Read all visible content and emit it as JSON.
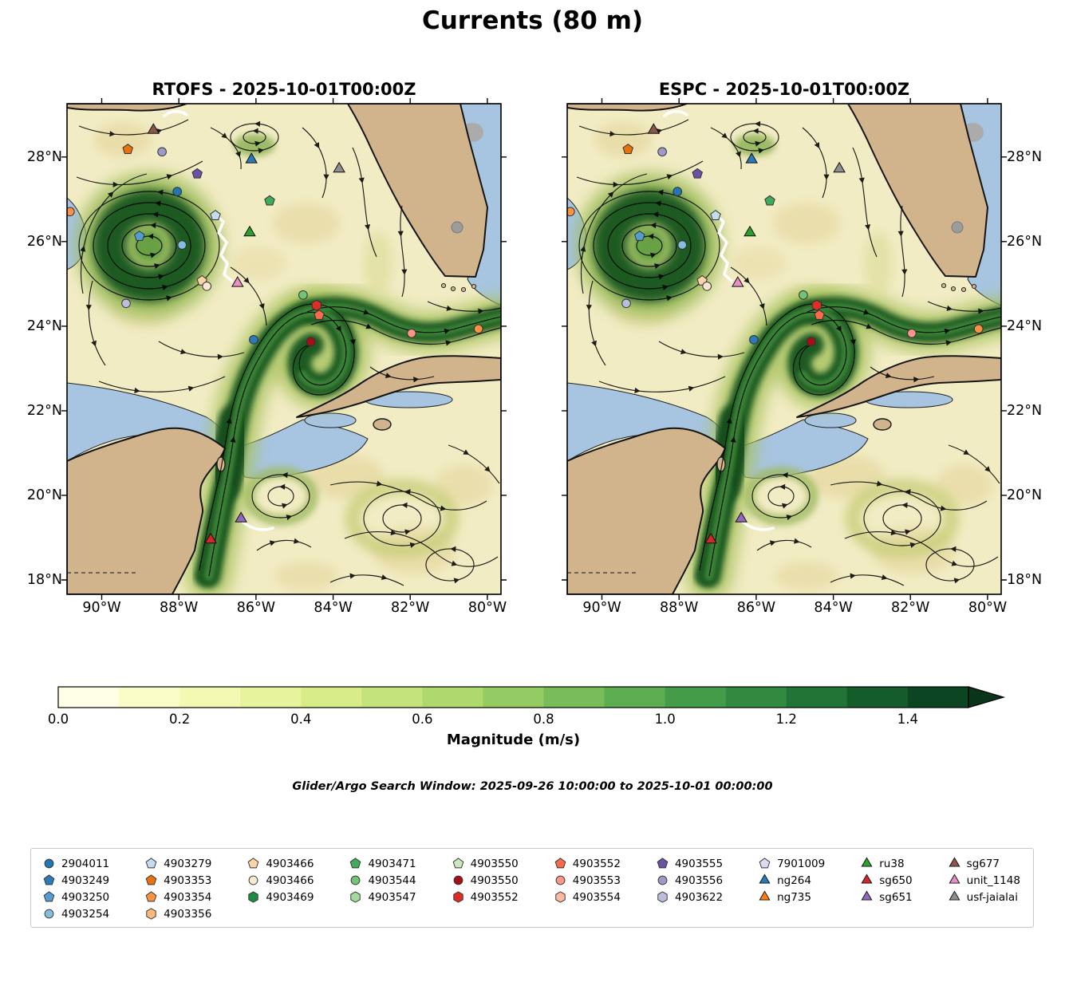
{
  "title": "Currents (80 m)",
  "chart_data": {
    "type": "heatmap",
    "subtype": "ocean-current-streamplot-maps",
    "panels": [
      {
        "title": "RTOFS - 2025-10-01T00:00Z"
      },
      {
        "title": "ESPC - 2025-10-01T00:00Z"
      }
    ],
    "axes": {
      "x_ticks": [
        "90°W",
        "88°W",
        "86°W",
        "84°W",
        "82°W",
        "80°W"
      ],
      "y_ticks": [
        "28°N",
        "26°N",
        "24°N",
        "22°N",
        "20°N",
        "18°N"
      ],
      "x_tick_values": [
        -90,
        -88,
        -86,
        -84,
        -82,
        -80
      ],
      "y_tick_values": [
        28,
        26,
        24,
        22,
        20,
        18
      ],
      "lon_range": [
        -90.9,
        -79.65
      ],
      "lat_range": [
        17.66,
        29.26
      ]
    },
    "colorbar": {
      "label": "Magnitude (m/s)",
      "tick_labels": [
        "0.0",
        "0.2",
        "0.4",
        "0.6",
        "0.8",
        "1.0",
        "1.2",
        "1.4"
      ],
      "tick_values": [
        0,
        0.2,
        0.4,
        0.6,
        0.8,
        1.0,
        1.2,
        1.4
      ],
      "scale_max": 1.5,
      "segment_colors": [
        "#ffffe5",
        "#fafdc8",
        "#f2f9b2",
        "#e8f39d",
        "#d9ec8a",
        "#c5e37d",
        "#aed96f",
        "#94cc63",
        "#78bd5a",
        "#5dad51",
        "#459c48",
        "#318a40",
        "#217436",
        "#155c2b",
        "#0c4522"
      ],
      "arrow_color": "#09351b"
    },
    "annotations": {
      "search_window": "Glider/Argo Search Window: 2025-09-26 10:00:00 to 2025-10-01 00:00:00"
    },
    "map_colors": {
      "land": "#d2b48c",
      "masked_water": "#a7c4e0",
      "low_magnitude": "#f2ecc4",
      "high_magnitude": "#1c5a21",
      "coastline": "#141414"
    },
    "legend_columns": [
      [
        {
          "label": "2904011",
          "shape": "circle",
          "color": "#1f77b4"
        },
        {
          "label": "4903249",
          "shape": "pentagon",
          "color": "#2b7bba"
        },
        {
          "label": "4903250",
          "shape": "pentagon",
          "color": "#549ecf"
        },
        {
          "label": "4903254",
          "shape": "circle",
          "color": "#86bdde"
        }
      ],
      [
        {
          "label": "4903279",
          "shape": "pentagon",
          "color": "#c3dcee"
        },
        {
          "label": "4903353",
          "shape": "pentagon",
          "color": "#e6730c"
        },
        {
          "label": "4903354",
          "shape": "pentagon",
          "color": "#fd9243"
        },
        {
          "label": "4903356",
          "shape": "hexagon",
          "color": "#fdb97d"
        }
      ],
      [
        {
          "label": "4903466",
          "shape": "pentagon",
          "color": "#fdd3a8"
        },
        {
          "label": "4903466",
          "shape": "circle",
          "color": "#fee8d1"
        },
        {
          "label": "4903469",
          "shape": "hexagon",
          "color": "#1e8b45"
        }
      ],
      [
        {
          "label": "4903471",
          "shape": "pentagon",
          "color": "#41ab5d"
        },
        {
          "label": "4903544",
          "shape": "circle",
          "color": "#74c476"
        },
        {
          "label": "4903547",
          "shape": "hexagon",
          "color": "#a5d99c"
        }
      ],
      [
        {
          "label": "4903550",
          "shape": "pentagon",
          "color": "#c9e8bf"
        },
        {
          "label": "4903550",
          "shape": "circle",
          "color": "#a50f15"
        },
        {
          "label": "4903552",
          "shape": "hexagon",
          "color": "#de2d26"
        }
      ],
      [
        {
          "label": "4903552",
          "shape": "pentagon",
          "color": "#fb6a4a"
        },
        {
          "label": "4903553",
          "shape": "circle",
          "color": "#fc9688"
        },
        {
          "label": "4903554",
          "shape": "hexagon",
          "color": "#fcbba1"
        }
      ],
      [
        {
          "label": "4903555",
          "shape": "pentagon",
          "color": "#6a51a3"
        },
        {
          "label": "4903556",
          "shape": "circle",
          "color": "#9e9ac8"
        },
        {
          "label": "4903622",
          "shape": "hexagon",
          "color": "#bcbddc"
        }
      ],
      [
        {
          "label": "7901009",
          "shape": "pentagon",
          "color": "#dcdaec"
        },
        {
          "label": "ng264",
          "shape": "triangle",
          "color": "#2a7ab9"
        },
        {
          "label": "ng735",
          "shape": "triangle",
          "color": "#ff7f0e"
        }
      ],
      [
        {
          "label": "ru38",
          "shape": "triangle",
          "color": "#2ca02c"
        },
        {
          "label": "sg650",
          "shape": "triangle",
          "color": "#d62728"
        },
        {
          "label": "sg651",
          "shape": "triangle",
          "color": "#9467bd"
        }
      ],
      [
        {
          "label": "sg677",
          "shape": "triangle",
          "color": "#8c564b"
        },
        {
          "label": "unit_1148",
          "shape": "triangle",
          "color": "#e88fc7"
        },
        {
          "label": "usf-jaialai",
          "shape": "triangle",
          "color": "#8f8f8f"
        }
      ]
    ],
    "map_markers": [
      {
        "shape": "triangle",
        "color": "#8c564b",
        "x": 0.199,
        "y": 0.054
      },
      {
        "shape": "pentagon",
        "color": "#e6730c",
        "x": 0.14,
        "y": 0.093
      },
      {
        "shape": "circle",
        "color": "#9e9ac8",
        "x": 0.219,
        "y": 0.098
      },
      {
        "shape": "pentagon",
        "color": "#6a51a3",
        "x": 0.3,
        "y": 0.143
      },
      {
        "shape": "triangle",
        "color": "#2a7ab9",
        "x": 0.425,
        "y": 0.114
      },
      {
        "shape": "triangle",
        "color": "#8f8f8f",
        "x": 0.627,
        "y": 0.133
      },
      {
        "shape": "circle",
        "color": "#1f77b4",
        "x": 0.254,
        "y": 0.179
      },
      {
        "shape": "pentagon",
        "color": "#41ab5d",
        "x": 0.467,
        "y": 0.198
      },
      {
        "shape": "circle",
        "color": "#fd9243",
        "x": 0.007,
        "y": 0.22
      },
      {
        "shape": "pentagon",
        "color": "#c3dcee",
        "x": 0.342,
        "y": 0.228
      },
      {
        "shape": "triangle",
        "color": "#2ca02c",
        "x": 0.421,
        "y": 0.263
      },
      {
        "shape": "pentagon",
        "color": "#549ecf",
        "x": 0.167,
        "y": 0.27
      },
      {
        "shape": "circle",
        "color": "#86bdde",
        "x": 0.265,
        "y": 0.288
      },
      {
        "shape": "pentagon",
        "color": "#fdd3a8",
        "x": 0.311,
        "y": 0.361
      },
      {
        "shape": "circle",
        "color": "#fee8d1",
        "x": 0.322,
        "y": 0.372
      },
      {
        "shape": "triangle",
        "color": "#e88fc7",
        "x": 0.393,
        "y": 0.366
      },
      {
        "shape": "circle",
        "color": "#bcbddc",
        "x": 0.136,
        "y": 0.407
      },
      {
        "shape": "circle",
        "color": "#74c476",
        "x": 0.544,
        "y": 0.39
      },
      {
        "shape": "hexagon",
        "color": "#de2d26",
        "x": 0.575,
        "y": 0.411
      },
      {
        "shape": "pentagon",
        "color": "#fb6a4a",
        "x": 0.581,
        "y": 0.431
      },
      {
        "shape": "circle",
        "color": "#2b7bba",
        "x": 0.43,
        "y": 0.481
      },
      {
        "shape": "circle",
        "color": "#a50f15",
        "x": 0.562,
        "y": 0.485
      },
      {
        "shape": "circle",
        "color": "#fc9688",
        "x": 0.794,
        "y": 0.468
      },
      {
        "shape": "circle",
        "color": "#fd9243",
        "x": 0.948,
        "y": 0.459
      },
      {
        "shape": "triangle",
        "color": "#9467bd",
        "x": 0.401,
        "y": 0.846
      },
      {
        "shape": "triangle",
        "color": "#d62728",
        "x": 0.331,
        "y": 0.889
      }
    ]
  }
}
